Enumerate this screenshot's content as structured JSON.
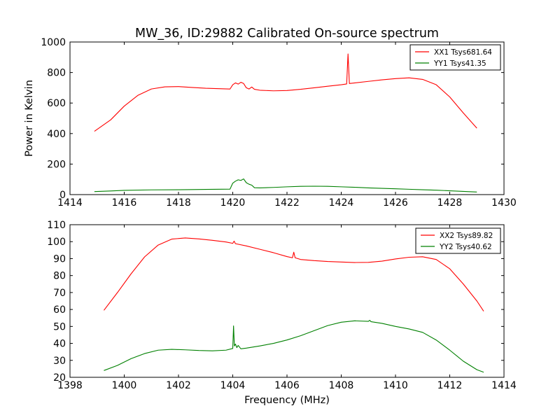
{
  "figure_title": "MW_36, ID:29882 Calibrated On-source spectrum",
  "colors": {
    "red": "#ff0000",
    "green": "#008000",
    "axes": "#000000",
    "background": "#ffffff"
  },
  "chart_data": [
    {
      "type": "line",
      "title": "MW_36, ID:29882 Calibrated On-source spectrum",
      "xlabel": "",
      "ylabel": "Power in Kelvin",
      "xlim": [
        1414,
        1430
      ],
      "ylim": [
        0,
        1000
      ],
      "xticks": [
        "1414",
        "1416",
        "1418",
        "1420",
        "1422",
        "1424",
        "1426",
        "1428",
        "1430"
      ],
      "yticks": [
        "0",
        "200",
        "400",
        "600",
        "800",
        "1000"
      ],
      "grid": false,
      "legend_position": "top-right",
      "series": [
        {
          "name": "XX1 Tsys681.64",
          "color": "#ff0000",
          "points": [
            [
              1414.9,
              415
            ],
            [
              1415.5,
              490
            ],
            [
              1416,
              580
            ],
            [
              1416.5,
              650
            ],
            [
              1417,
              692
            ],
            [
              1417.5,
              706
            ],
            [
              1418,
              708
            ],
            [
              1418.5,
              702
            ],
            [
              1419,
              697
            ],
            [
              1419.5,
              694
            ],
            [
              1419.9,
              692
            ],
            [
              1420.0,
              720
            ],
            [
              1420.1,
              732
            ],
            [
              1420.2,
              724
            ],
            [
              1420.3,
              736
            ],
            [
              1420.4,
              728
            ],
            [
              1420.5,
              700
            ],
            [
              1420.6,
              692
            ],
            [
              1420.7,
              705
            ],
            [
              1420.8,
              690
            ],
            [
              1421,
              684
            ],
            [
              1421.5,
              680
            ],
            [
              1422,
              682
            ],
            [
              1422.5,
              690
            ],
            [
              1423,
              700
            ],
            [
              1423.5,
              710
            ],
            [
              1424,
              720
            ],
            [
              1424.2,
              725
            ],
            [
              1424.25,
              922
            ],
            [
              1424.3,
              728
            ],
            [
              1424.5,
              732
            ],
            [
              1425,
              742
            ],
            [
              1425.5,
              752
            ],
            [
              1426,
              760
            ],
            [
              1426.5,
              765
            ],
            [
              1427,
              755
            ],
            [
              1427.5,
              720
            ],
            [
              1428,
              640
            ],
            [
              1428.5,
              535
            ],
            [
              1429,
              435
            ]
          ]
        },
        {
          "name": "YY1 Tsys41.35",
          "color": "#008000",
          "points": [
            [
              1414.9,
              20
            ],
            [
              1415.5,
              24
            ],
            [
              1416,
              28
            ],
            [
              1417,
              31
            ],
            [
              1418,
              32
            ],
            [
              1419,
              34
            ],
            [
              1419.9,
              36
            ],
            [
              1420.0,
              75
            ],
            [
              1420.1,
              88
            ],
            [
              1420.2,
              97
            ],
            [
              1420.3,
              93
            ],
            [
              1420.4,
              103
            ],
            [
              1420.5,
              78
            ],
            [
              1420.6,
              68
            ],
            [
              1420.7,
              62
            ],
            [
              1420.8,
              45
            ],
            [
              1421,
              44
            ],
            [
              1421.5,
              47
            ],
            [
              1422,
              51
            ],
            [
              1422.5,
              54
            ],
            [
              1423,
              55
            ],
            [
              1423.5,
              54
            ],
            [
              1424,
              51
            ],
            [
              1424.5,
              48
            ],
            [
              1425,
              44
            ],
            [
              1425.5,
              41
            ],
            [
              1426,
              38
            ],
            [
              1426.5,
              35
            ],
            [
              1427,
              32
            ],
            [
              1427.5,
              29
            ],
            [
              1428,
              25
            ],
            [
              1428.5,
              21
            ],
            [
              1429,
              17
            ]
          ]
        }
      ]
    },
    {
      "type": "line",
      "title": "",
      "xlabel": "Frequency (MHz)",
      "ylabel": "",
      "xlim": [
        1398,
        1414
      ],
      "ylim": [
        20,
        110
      ],
      "xticks": [
        "1398",
        "1400",
        "1402",
        "1404",
        "1406",
        "1408",
        "1410",
        "1412",
        "1414"
      ],
      "yticks": [
        "20",
        "30",
        "40",
        "50",
        "60",
        "70",
        "80",
        "90",
        "100",
        "110"
      ],
      "grid": false,
      "legend_position": "top-right",
      "series": [
        {
          "name": "XX2 Tsys89.82",
          "color": "#ff0000",
          "points": [
            [
              1399.25,
              59.5
            ],
            [
              1399.75,
              70
            ],
            [
              1400.25,
              81
            ],
            [
              1400.75,
              91
            ],
            [
              1401.25,
              98
            ],
            [
              1401.75,
              101.5
            ],
            [
              1402.25,
              102.2
            ],
            [
              1402.75,
              101.6
            ],
            [
              1403.25,
              100.8
            ],
            [
              1403.75,
              99.8
            ],
            [
              1404.0,
              99.0
            ],
            [
              1404.05,
              100.3
            ],
            [
              1404.1,
              98.8
            ],
            [
              1404.5,
              97.5
            ],
            [
              1405,
              95.5
            ],
            [
              1405.5,
              93.5
            ],
            [
              1406,
              91.2
            ],
            [
              1406.2,
              90.5
            ],
            [
              1406.25,
              93.8
            ],
            [
              1406.3,
              90.5
            ],
            [
              1406.5,
              89.5
            ],
            [
              1407,
              88.8
            ],
            [
              1407.5,
              88.3
            ],
            [
              1408,
              88.0
            ],
            [
              1408.5,
              87.7
            ],
            [
              1409,
              87.8
            ],
            [
              1409.5,
              88.5
            ],
            [
              1410,
              89.8
            ],
            [
              1410.5,
              90.8
            ],
            [
              1411,
              91.1
            ],
            [
              1411.5,
              89.5
            ],
            [
              1412,
              84
            ],
            [
              1412.5,
              75
            ],
            [
              1413,
              65
            ],
            [
              1413.25,
              59
            ]
          ]
        },
        {
          "name": "YY2 Tsys40.62",
          "color": "#008000",
          "points": [
            [
              1399.25,
              24
            ],
            [
              1399.75,
              27
            ],
            [
              1400.25,
              31
            ],
            [
              1400.75,
              34
            ],
            [
              1401.25,
              36
            ],
            [
              1401.75,
              36.5
            ],
            [
              1402.25,
              36.2
            ],
            [
              1402.75,
              35.8
            ],
            [
              1403.25,
              35.6
            ],
            [
              1403.75,
              36.0
            ],
            [
              1404.0,
              37.0
            ],
            [
              1404.03,
              50.3
            ],
            [
              1404.06,
              38.5
            ],
            [
              1404.1,
              39.6
            ],
            [
              1404.15,
              37.5
            ],
            [
              1404.2,
              38.8
            ],
            [
              1404.3,
              36.8
            ],
            [
              1404.5,
              37.2
            ],
            [
              1405,
              38.5
            ],
            [
              1405.5,
              40
            ],
            [
              1406,
              42
            ],
            [
              1406.5,
              44.5
            ],
            [
              1407,
              47.5
            ],
            [
              1407.5,
              50.5
            ],
            [
              1408,
              52.5
            ],
            [
              1408.5,
              53.3
            ],
            [
              1409,
              53.0
            ],
            [
              1409.05,
              53.6
            ],
            [
              1409.1,
              52.8
            ],
            [
              1409.5,
              51.8
            ],
            [
              1410,
              50
            ],
            [
              1410.5,
              48.5
            ],
            [
              1411,
              46.5
            ],
            [
              1411.5,
              42
            ],
            [
              1412,
              36
            ],
            [
              1412.5,
              29.5
            ],
            [
              1413,
              24.5
            ],
            [
              1413.25,
              23
            ]
          ]
        }
      ]
    }
  ]
}
